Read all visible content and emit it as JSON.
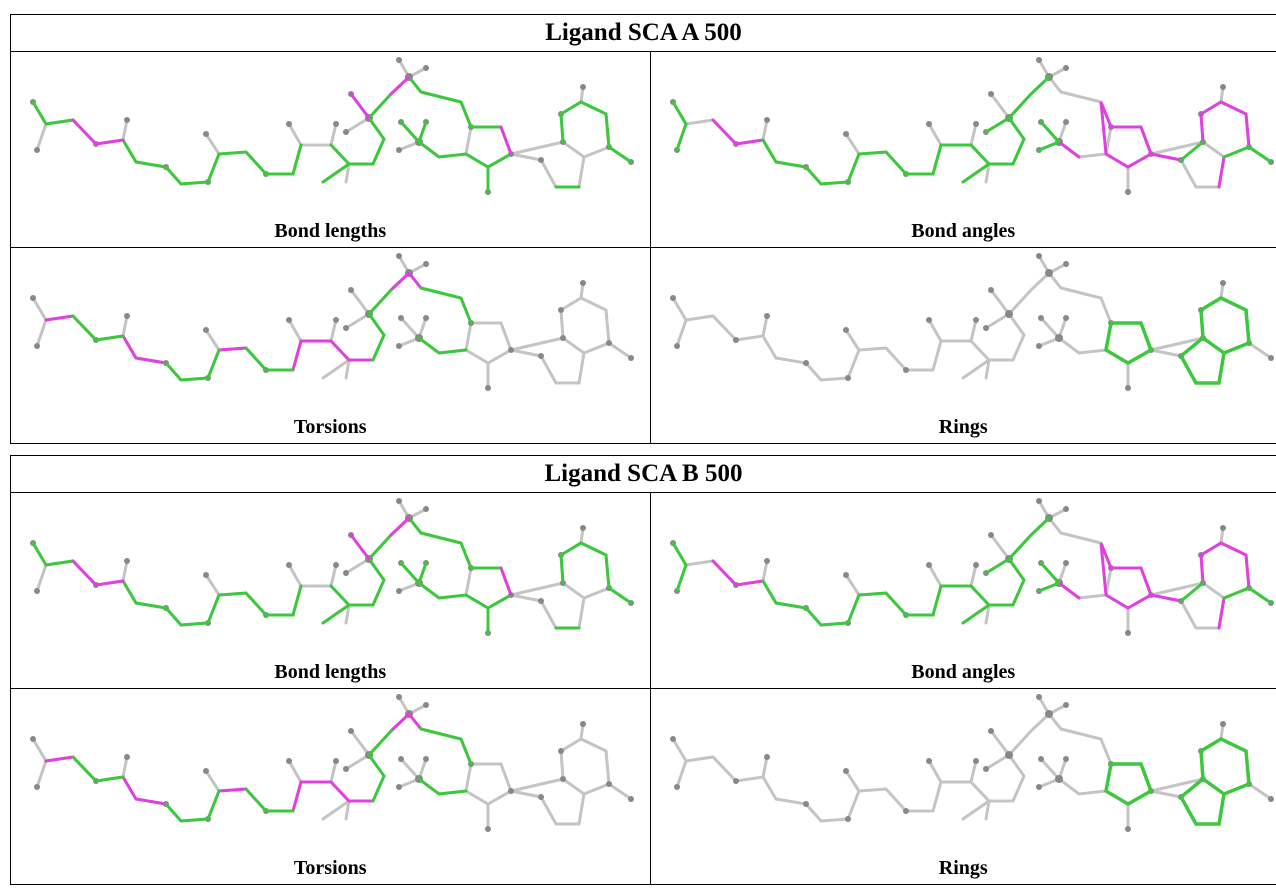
{
  "tables": [
    {
      "title": "Ligand SCA A 500",
      "panels": [
        {
          "caption": "Bond lengths"
        },
        {
          "caption": "Bond angles"
        },
        {
          "caption": "Torsions"
        },
        {
          "caption": "Rings"
        }
      ]
    },
    {
      "title": "Ligand SCA B 500",
      "panels": [
        {
          "caption": "Bond lengths"
        },
        {
          "caption": "Bond angles"
        },
        {
          "caption": "Torsions"
        },
        {
          "caption": "Rings"
        }
      ]
    }
  ]
}
